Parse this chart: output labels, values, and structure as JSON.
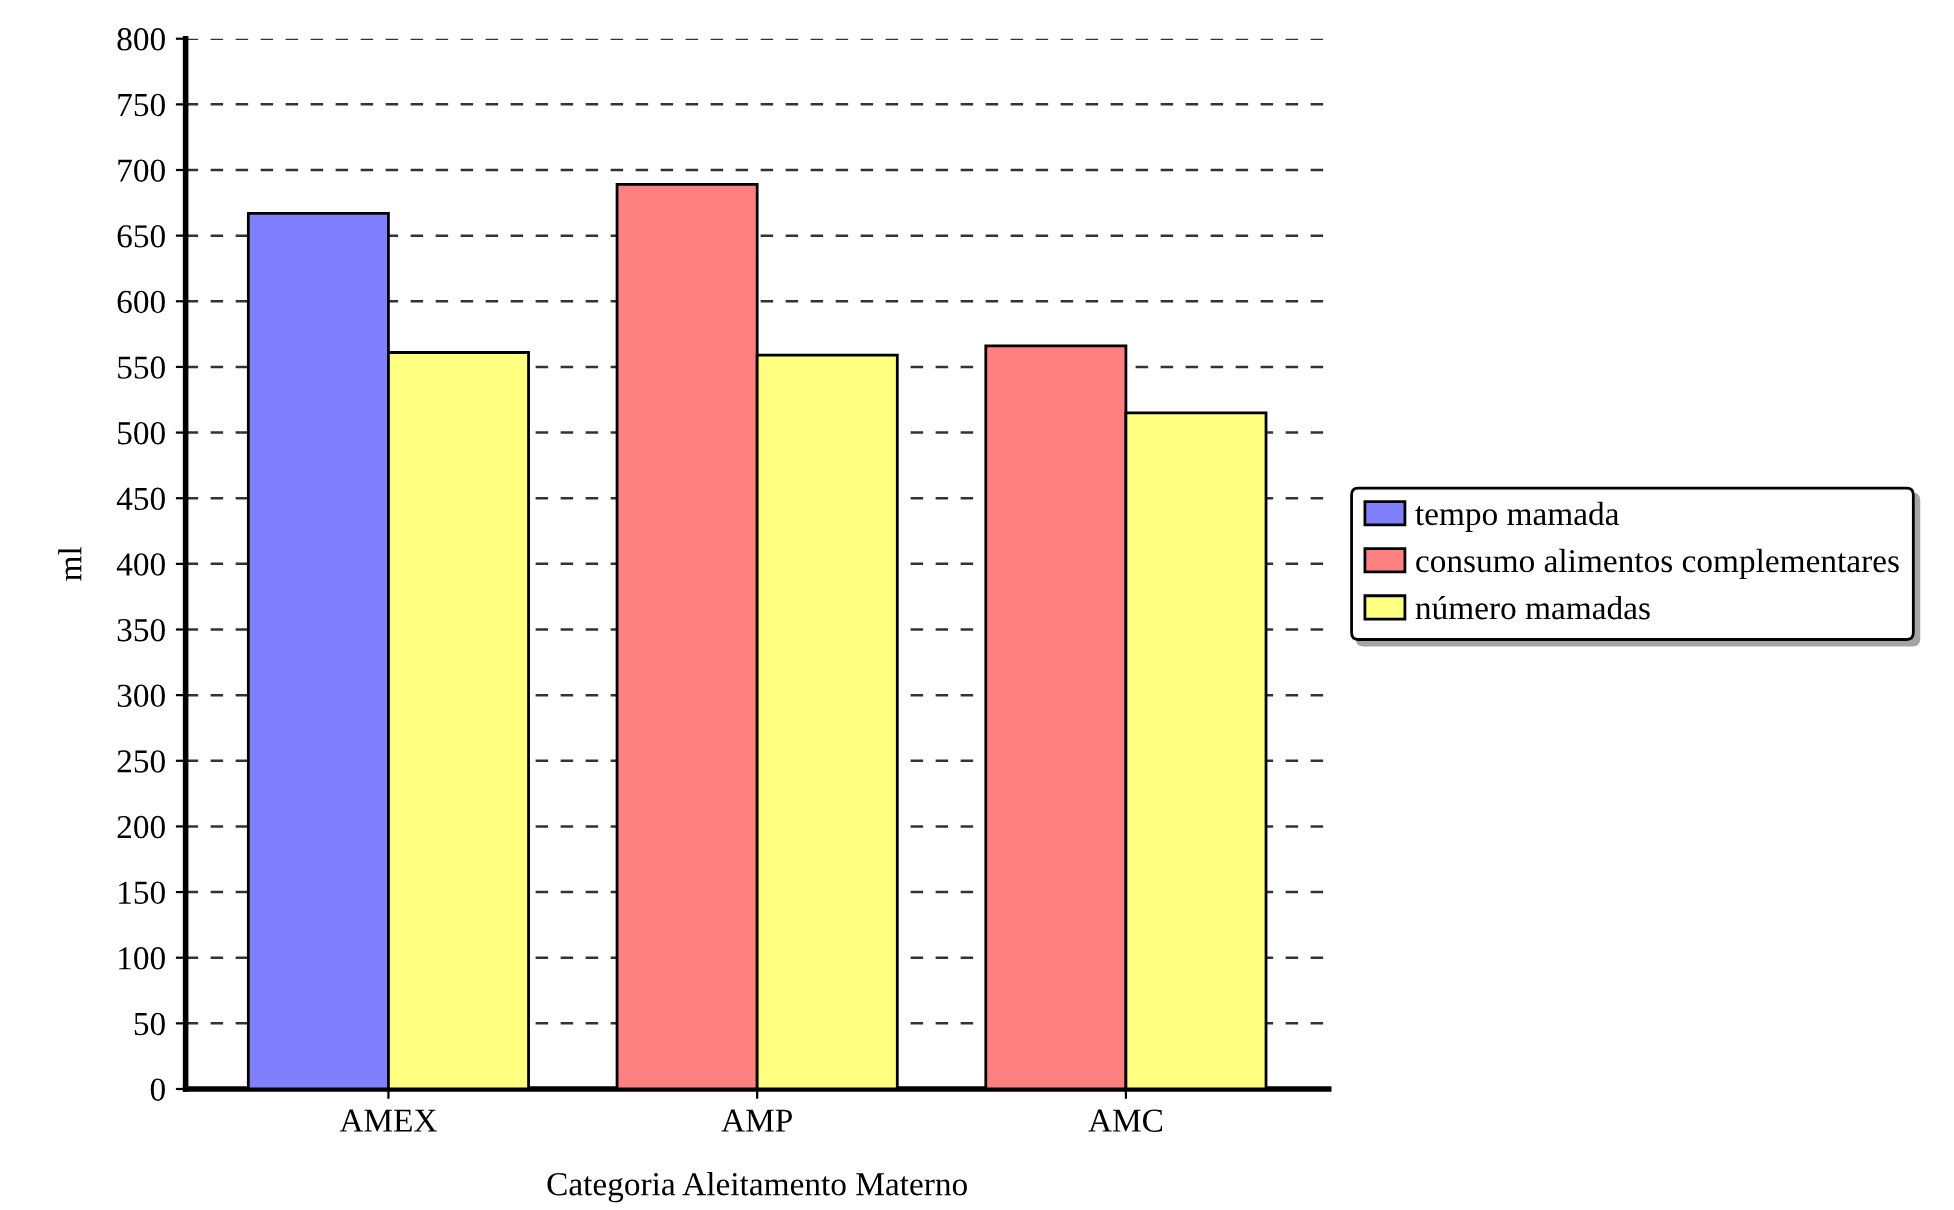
{
  "chart_data": {
    "type": "bar",
    "xlabel": "Categoria Aleitamento Materno",
    "ylabel": "ml",
    "categories": [
      "AMEX",
      "AMP",
      "AMC"
    ],
    "series": [
      {
        "name": "tempo mamada",
        "color": "#8080ff",
        "values": [
          667,
          null,
          null
        ]
      },
      {
        "name": "consumo alimentos complementares",
        "color": "#ff8080",
        "values": [
          null,
          689,
          566
        ]
      },
      {
        "name": "número mamadas",
        "color": "#ffff80",
        "values": [
          561,
          559,
          515
        ]
      }
    ],
    "ylim": [
      0,
      800
    ],
    "yticks": [
      0,
      50,
      100,
      150,
      200,
      250,
      300,
      350,
      400,
      450,
      500,
      550,
      600,
      650,
      700,
      750,
      800
    ],
    "grid": "y",
    "legend": "right",
    "line_style": "dashed"
  }
}
